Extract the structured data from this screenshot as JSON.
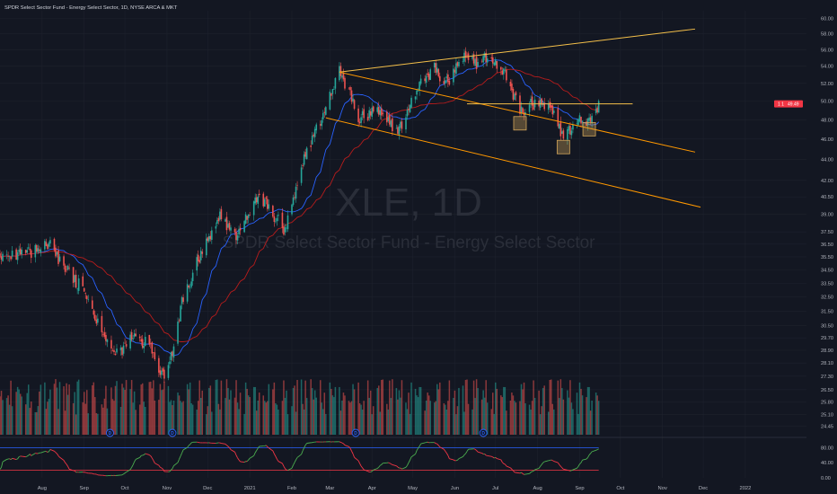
{
  "header": {
    "title": "SPDR Select Sector Fund - Energy Select Sector, 1D, NYSE ARCA & MKT"
  },
  "watermark": {
    "symbol": "XLE, 1D",
    "name": "SPDR Select Sector Fund - Energy Select Sector"
  },
  "price_badge": {
    "left": "1 1",
    "right": "49.49",
    "color": "#f23645"
  },
  "colors": {
    "background": "#131722",
    "up": "#26a69a",
    "down": "#ef5350",
    "ma_fast": "#2962ff",
    "ma_slow": "#b71c1c",
    "trendline": "#f5c04a",
    "channel": "#ff9800",
    "osc_line_up": "#4caf50",
    "osc_line_down": "#f23645",
    "osc_upper_band": "#2962ff",
    "osc_lower_band": "#f23645",
    "marker_box": "#d4a75a"
  },
  "chart_data": {
    "type": "candlestick",
    "symbol": "XLE",
    "timeframe": "1D",
    "y_axis": {
      "scale": "log",
      "ticks": [
        "60.00",
        "58.00",
        "56.00",
        "54.00",
        "52.00",
        "50.00",
        "48.00",
        "46.00",
        "44.00",
        "42.00",
        "40.50",
        "39.00",
        "37.50",
        "36.50",
        "35.50",
        "34.50",
        "33.50",
        "32.50",
        "31.50",
        "30.50",
        "29.70",
        "28.90",
        "28.10",
        "27.30",
        "26.50",
        "25.80",
        "25.10",
        "24.45"
      ]
    },
    "x_axis": {
      "ticks": [
        "Aug",
        "Sep",
        "Oct",
        "Nov",
        "Dec",
        "2021",
        "Feb",
        "Mar",
        "Apr",
        "May",
        "Jun",
        "Jul",
        "Aug",
        "Sep",
        "Oct",
        "Nov",
        "Dec",
        "2022"
      ],
      "tick_dates": [
        "2020-08-01",
        "2020-09-01",
        "2020-10-01",
        "2020-11-01",
        "2020-12-01",
        "2021-01-01",
        "2021-02-01",
        "2021-03-01",
        "2021-04-01",
        "2021-05-01",
        "2021-06-01",
        "2021-07-01",
        "2021-08-01",
        "2021-09-01",
        "2021-10-01",
        "2021-11-01",
        "2021-12-01",
        "2022-01-01"
      ]
    },
    "price_anchors": [
      {
        "date": "2020-07-01",
        "close": 35.8
      },
      {
        "date": "2020-07-20",
        "close": 35.6
      },
      {
        "date": "2020-08-04",
        "close": 36.8
      },
      {
        "date": "2020-08-14",
        "close": 35.2
      },
      {
        "date": "2020-08-28",
        "close": 33.4
      },
      {
        "date": "2020-09-10",
        "close": 31.0
      },
      {
        "date": "2020-09-24",
        "close": 28.6
      },
      {
        "date": "2020-10-08",
        "close": 29.8
      },
      {
        "date": "2020-10-20",
        "close": 29.2
      },
      {
        "date": "2020-10-30",
        "close": 27.0
      },
      {
        "date": "2020-11-06",
        "close": 29.3
      },
      {
        "date": "2020-11-12",
        "close": 32.0
      },
      {
        "date": "2020-11-25",
        "close": 35.5
      },
      {
        "date": "2020-12-10",
        "close": 38.8
      },
      {
        "date": "2020-12-21",
        "close": 37.0
      },
      {
        "date": "2021-01-08",
        "close": 40.5
      },
      {
        "date": "2021-01-27",
        "close": 37.6
      },
      {
        "date": "2021-02-10",
        "close": 44.0
      },
      {
        "date": "2021-02-24",
        "close": 48.5
      },
      {
        "date": "2021-03-08",
        "close": 53.3
      },
      {
        "date": "2021-03-23",
        "close": 48.0
      },
      {
        "date": "2021-04-05",
        "close": 49.2
      },
      {
        "date": "2021-04-20",
        "close": 46.5
      },
      {
        "date": "2021-05-05",
        "close": 51.5
      },
      {
        "date": "2021-05-17",
        "close": 53.6
      },
      {
        "date": "2021-05-26",
        "close": 52.0
      },
      {
        "date": "2021-06-08",
        "close": 55.4
      },
      {
        "date": "2021-06-18",
        "close": 54.0
      },
      {
        "date": "2021-06-25",
        "close": 55.2
      },
      {
        "date": "2021-07-07",
        "close": 53.2
      },
      {
        "date": "2021-07-19",
        "close": 48.8
      },
      {
        "date": "2021-07-30",
        "close": 49.8
      },
      {
        "date": "2021-08-10",
        "close": 49.5
      },
      {
        "date": "2021-08-20",
        "close": 46.0
      },
      {
        "date": "2021-08-31",
        "close": 48.0
      },
      {
        "date": "2021-09-08",
        "close": 47.6
      },
      {
        "date": "2021-09-15",
        "close": 49.5
      }
    ],
    "horizontal_level": 49.7,
    "trendlines": [
      {
        "label": "upper-rising",
        "from": [
          "2021-03-08",
          53.3
        ],
        "to": [
          "2021-11-25",
          58.6
        ]
      },
      {
        "label": "channel-upper",
        "from": [
          "2021-03-08",
          53.3
        ],
        "to": [
          "2021-11-25",
          44.7
        ]
      },
      {
        "label": "channel-lower",
        "from": [
          "2021-02-26",
          48.2
        ],
        "to": [
          "2021-11-29",
          39.6
        ]
      }
    ],
    "marked_lows": [
      "2021-07-19",
      "2021-08-20",
      "2021-09-08"
    ],
    "oscillator": {
      "ticks": [
        "80.00",
        "40.00",
        "0.00"
      ],
      "upper_band": 80,
      "lower_band": 20
    }
  }
}
